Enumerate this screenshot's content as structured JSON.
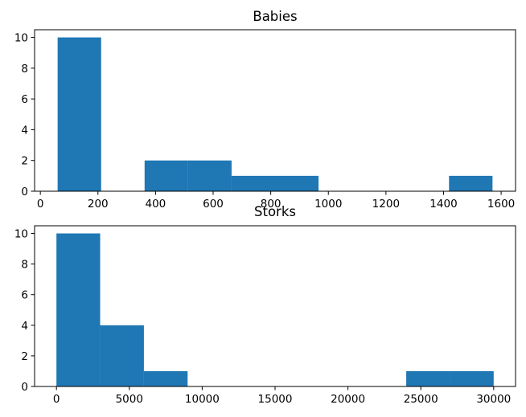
{
  "chart_data": [
    {
      "type": "bar",
      "title": "Babies",
      "xlabel": "",
      "ylabel": "",
      "xlim": [
        -20,
        1650
      ],
      "ylim": [
        0,
        10.5
      ],
      "xticks": [
        0,
        200,
        400,
        600,
        800,
        1000,
        1200,
        1400,
        1600
      ],
      "yticks": [
        0,
        2,
        4,
        6,
        8,
        10
      ],
      "grid": false,
      "bins": [
        {
          "start": 60,
          "end": 211,
          "count": 10
        },
        {
          "start": 211,
          "end": 362,
          "count": 0
        },
        {
          "start": 362,
          "end": 513,
          "count": 2
        },
        {
          "start": 513,
          "end": 664,
          "count": 2
        },
        {
          "start": 664,
          "end": 815,
          "count": 1
        },
        {
          "start": 815,
          "end": 966,
          "count": 1
        },
        {
          "start": 966,
          "end": 1117,
          "count": 0
        },
        {
          "start": 1117,
          "end": 1268,
          "count": 0
        },
        {
          "start": 1268,
          "end": 1419,
          "count": 0
        },
        {
          "start": 1419,
          "end": 1570,
          "count": 1
        }
      ],
      "color": "#1f77b4"
    },
    {
      "type": "bar",
      "title": "Storks",
      "xlabel": "",
      "ylabel": "",
      "xlim": [
        -1500,
        31500
      ],
      "ylim": [
        0,
        10.5
      ],
      "xticks": [
        0,
        5000,
        10000,
        15000,
        20000,
        25000,
        30000
      ],
      "yticks": [
        0,
        2,
        4,
        6,
        8,
        10
      ],
      "grid": false,
      "bins": [
        {
          "start": 0,
          "end": 3000,
          "count": 10
        },
        {
          "start": 3000,
          "end": 6000,
          "count": 4
        },
        {
          "start": 6000,
          "end": 9000,
          "count": 1
        },
        {
          "start": 9000,
          "end": 12000,
          "count": 0
        },
        {
          "start": 12000,
          "end": 15000,
          "count": 0
        },
        {
          "start": 15000,
          "end": 18000,
          "count": 0
        },
        {
          "start": 18000,
          "end": 21000,
          "count": 0
        },
        {
          "start": 21000,
          "end": 24000,
          "count": 0
        },
        {
          "start": 24000,
          "end": 27000,
          "count": 1
        },
        {
          "start": 27000,
          "end": 30000,
          "count": 1
        }
      ],
      "color": "#1f77b4"
    }
  ]
}
